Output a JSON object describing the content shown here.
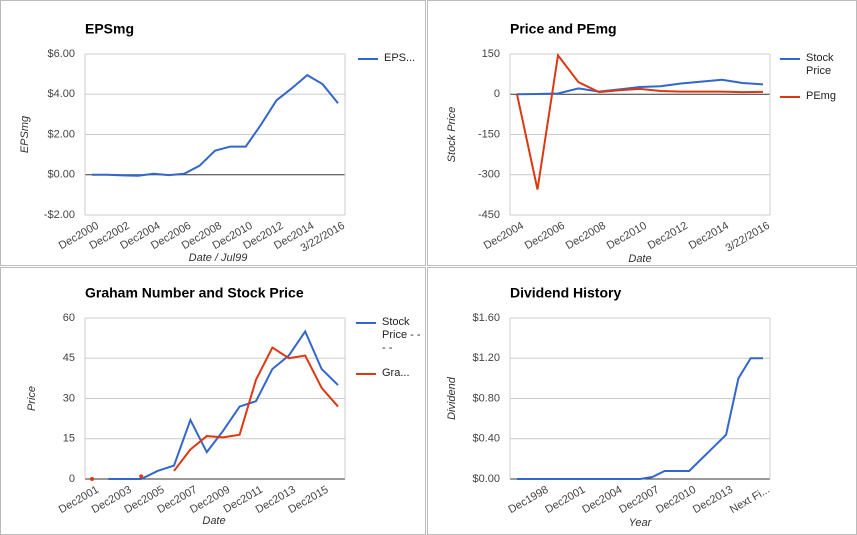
{
  "chart_data": [
    {
      "type": "line",
      "title": "EPSmg",
      "ylabel": "EPSmg",
      "xlabel": "Date / Jul99",
      "legend": "right",
      "categories": [
        "Dec2000",
        null,
        "Dec2002",
        null,
        "Dec2004",
        null,
        "Dec2006",
        null,
        "Dec2008",
        null,
        "Dec2010",
        null,
        "Dec2012",
        null,
        "Dec2014",
        null,
        "3/22/2016"
      ],
      "series": [
        {
          "name": "EPS...",
          "color": "#3366cc",
          "values": [
            0.0,
            0.0,
            -0.03,
            -0.05,
            0.05,
            -0.02,
            0.05,
            0.45,
            1.2,
            1.4,
            1.4,
            2.5,
            3.7,
            4.3,
            4.95,
            4.5,
            3.55
          ]
        }
      ],
      "ylim": [
        -2,
        6
      ],
      "yticks": [
        {
          "value": -2,
          "label": "-$2.00"
        },
        {
          "value": 0,
          "label": "$0.00"
        },
        {
          "value": 2,
          "label": "$2.00"
        },
        {
          "value": 4,
          "label": "$4.00"
        },
        {
          "value": 6,
          "label": "$6.00"
        }
      ],
      "grid": true
    },
    {
      "type": "line",
      "title": "Price and PEmg",
      "ylabel": "Stock Price",
      "xlabel": "Date",
      "legend": "right",
      "categories": [
        "Dec2004",
        null,
        "Dec2006",
        null,
        "Dec2008",
        null,
        "Dec2010",
        null,
        "Dec2012",
        null,
        "Dec2014",
        null,
        "3/22/2016"
      ],
      "series": [
        {
          "name": "Stock Price",
          "color": "#3366cc",
          "values": [
            0,
            1,
            3,
            22,
            10,
            18,
            27,
            30,
            40,
            47,
            54,
            42,
            37
          ]
        },
        {
          "name": "PEmg",
          "color": "#dc3912",
          "values": [
            0,
            -355,
            145,
            45,
            8,
            15,
            20,
            12,
            10,
            10,
            10,
            8,
            9
          ]
        }
      ],
      "ylim": [
        -450,
        150
      ],
      "yticks": [
        -450,
        -300,
        -150,
        0,
        150
      ],
      "grid": true
    },
    {
      "type": "line",
      "title": "Graham Number and Stock Price",
      "ylabel": "Price",
      "xlabel": "Date",
      "legend": "right",
      "categories": [
        "Dec2001",
        null,
        "Dec2003",
        null,
        "Dec2005",
        null,
        "Dec2007",
        null,
        "Dec2009",
        null,
        "Dec2011",
        null,
        "Dec2013",
        null,
        "Dec2015",
        null
      ],
      "series": [
        {
          "name": "Stock Price - - - -",
          "color": "#3366cc",
          "values": [
            null,
            0,
            0,
            0,
            3,
            5,
            22,
            10,
            18,
            27,
            29,
            41,
            46,
            55,
            41,
            35
          ]
        },
        {
          "name": "Gra...",
          "color": "#dc3912",
          "values": [
            0,
            null,
            null,
            1,
            null,
            3,
            11,
            16,
            15.5,
            16.5,
            37,
            49,
            45,
            46,
            34,
            27
          ]
        }
      ],
      "ylim": [
        0,
        60
      ],
      "yticks": [
        0,
        15,
        30,
        45,
        60
      ],
      "grid": true
    },
    {
      "type": "line",
      "title": "Dividend History",
      "ylabel": "Dividend",
      "xlabel": "Year",
      "categories": [
        null,
        null,
        "Dec1998",
        null,
        null,
        "Dec2001",
        null,
        null,
        "Dec2004",
        null,
        null,
        "Dec2007",
        null,
        null,
        "Dec2010",
        null,
        null,
        "Dec2013",
        null,
        null,
        "Next Fi..."
      ],
      "series": [
        {
          "color": "#3366cc",
          "values": [
            0,
            0,
            0,
            0,
            0,
            0,
            0,
            0,
            0,
            0,
            0,
            0.02,
            0.08,
            0.08,
            0.08,
            0.2,
            0.32,
            0.44,
            1.0,
            1.2,
            1.2
          ]
        }
      ],
      "ylim": [
        0,
        1.6
      ],
      "yticks": [
        {
          "value": 0,
          "label": "$0.00"
        },
        {
          "value": 0.4,
          "label": "$0.40"
        },
        {
          "value": 0.8,
          "label": "$0.80"
        },
        {
          "value": 1.2,
          "label": "$1.20"
        },
        {
          "value": 1.6,
          "label": "$1.60"
        }
      ],
      "grid": true
    }
  ]
}
